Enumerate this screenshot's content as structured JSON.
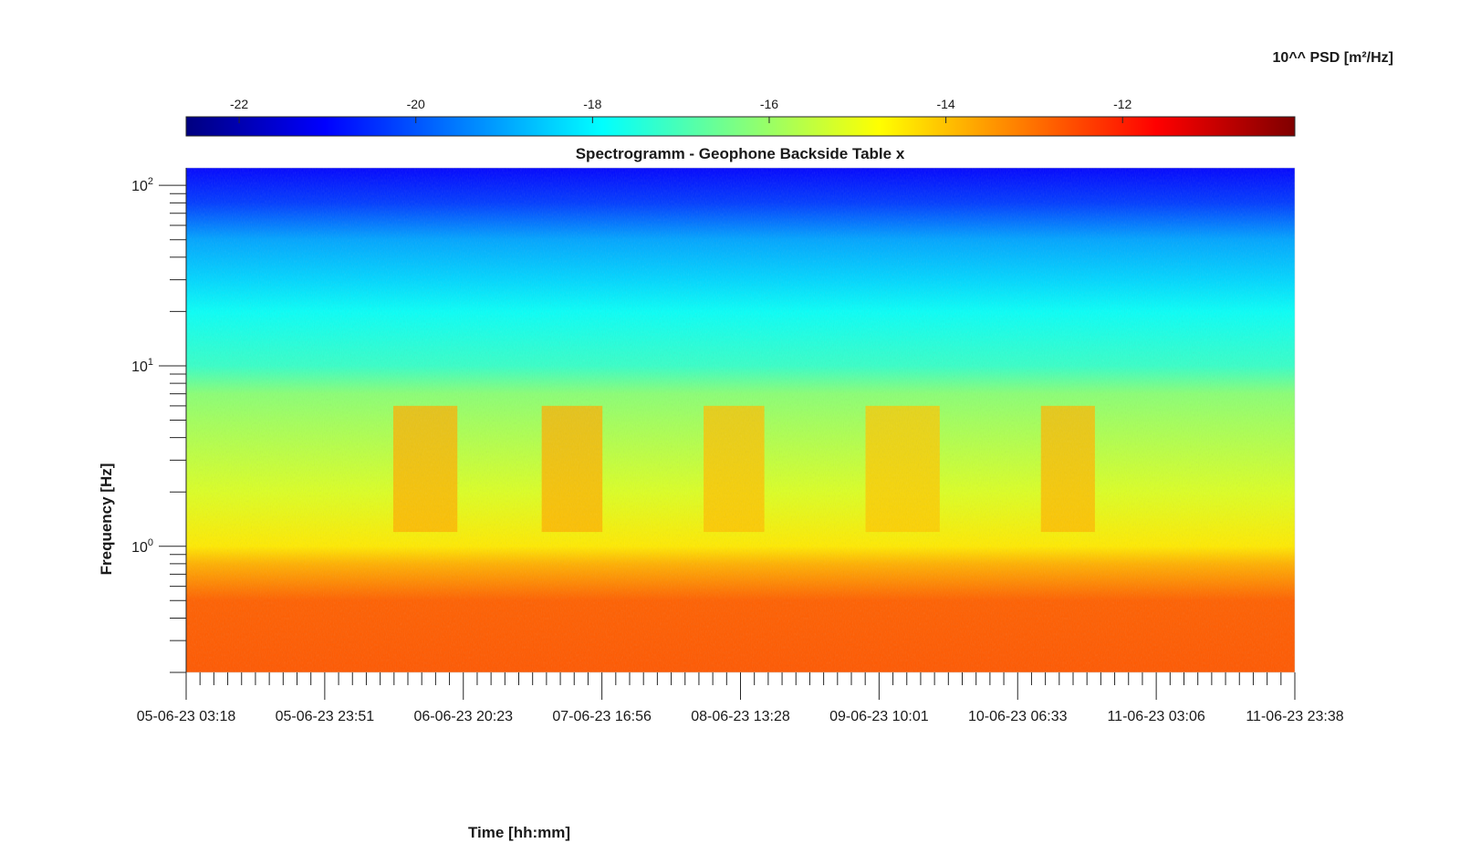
{
  "chart_data": {
    "type": "heatmap",
    "title": "Spectrogramm - Geophone Backside Table x",
    "xlabel": "Time [hh:mm]",
    "ylabel": "Frequency [Hz]",
    "x_ticks": [
      "05-06-23 03:18",
      "05-06-23 23:51",
      "06-06-23 20:23",
      "07-06-23 16:56",
      "08-06-23 13:28",
      "09-06-23 10:01",
      "10-06-23 06:33",
      "11-06-23 03:06",
      "11-06-23 23:38"
    ],
    "y_scale": "log",
    "y_ticks": [
      {
        "base": "10",
        "exp": "0",
        "value": 1
      },
      {
        "base": "10",
        "exp": "1",
        "value": 10
      },
      {
        "base": "10",
        "exp": "2",
        "value": 100
      }
    ],
    "ylim": [
      0.2,
      125
    ],
    "colorbar": {
      "title": "10^^ PSD [m²/Hz]",
      "colormap": "jet",
      "ticks": [
        "-22",
        "-20",
        "-18",
        "-16",
        "-14",
        "-12"
      ],
      "tick_values": [
        -22,
        -20,
        -18,
        -16,
        -14,
        -12
      ],
      "range": [
        -22.6,
        -10.05
      ],
      "position": "top"
    },
    "psd_profile": [
      {
        "freq": 0.2,
        "psd": -12.7
      },
      {
        "freq": 0.5,
        "psd": -12.8
      },
      {
        "freq": 0.8,
        "psd": -13.8
      },
      {
        "freq": 1.0,
        "psd": -14.5
      },
      {
        "freq": 2.0,
        "psd": -15.2
      },
      {
        "freq": 5.0,
        "psd": -15.9
      },
      {
        "freq": 7.0,
        "psd": -16.2
      },
      {
        "freq": 10.0,
        "psd": -17.2
      },
      {
        "freq": 20.0,
        "psd": -17.8
      },
      {
        "freq": 30.0,
        "psd": -18.4
      },
      {
        "freq": 50.0,
        "psd": -19.0
      },
      {
        "freq": 80.0,
        "psd": -20.3
      },
      {
        "freq": 125.0,
        "psd": -21.0
      }
    ],
    "daytime_activity": [
      {
        "start": "06-06-23 10:00",
        "end": "06-06-23 19:30",
        "psd_increase": 1.6
      },
      {
        "start": "07-06-23 08:00",
        "end": "07-06-23 17:00",
        "psd_increase": 1.6
      },
      {
        "start": "08-06-23 08:00",
        "end": "08-06-23 17:00",
        "psd_increase": 1.4
      },
      {
        "start": "09-06-23 08:00",
        "end": "09-06-23 19:00",
        "psd_increase": 1.3
      },
      {
        "start": "10-06-23 10:00",
        "end": "10-06-23 18:00",
        "psd_increase": 1.5
      }
    ]
  }
}
